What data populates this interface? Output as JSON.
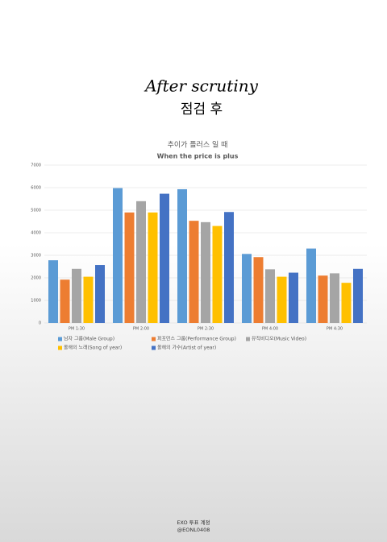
{
  "header": {
    "title": "After scrutiny",
    "subtitle": "점검 후"
  },
  "chart_data": {
    "type": "bar",
    "title": "추이가 플러스 일 때",
    "subtitle": "When the price is plus",
    "categories": [
      "PM 1:30",
      "PM 2:00",
      "PM 2:30",
      "PM 4:00",
      "PM 4:30"
    ],
    "series": [
      {
        "name": "남자 그룹(Male Group)",
        "color": "#5b9bd5",
        "values": [
          2780,
          5980,
          5930,
          3060,
          3300
        ]
      },
      {
        "name": "퍼포먼스 그룹(Performance Group)",
        "color": "#ed7d31",
        "values": [
          1920,
          4900,
          4530,
          2920,
          2100
        ]
      },
      {
        "name": "뮤직비디오(Music Video)",
        "color": "#a5a5a5",
        "values": [
          2400,
          5400,
          4470,
          2380,
          2200
        ]
      },
      {
        "name": "올해의 노래(Song of year)",
        "color": "#ffc000",
        "values": [
          2050,
          4900,
          4300,
          2050,
          1780
        ]
      },
      {
        "name": "올해의 가수(Artist of year)",
        "color": "#4472c4",
        "values": [
          2570,
          5730,
          4920,
          2230,
          2400
        ]
      }
    ],
    "ylim": [
      0,
      7000
    ],
    "yticks": [
      0,
      1000,
      2000,
      3000,
      4000,
      5000,
      6000,
      7000
    ],
    "grid": true
  },
  "footer": {
    "line1": "EXO 투표 계정",
    "line2": "@EONL0408"
  }
}
